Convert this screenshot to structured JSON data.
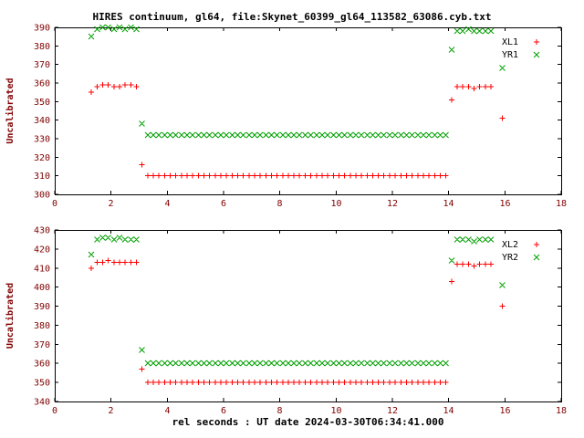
{
  "title": "HIRES continuum, gl64, file:Skynet_60399_gl64_113582_63086.cyb.txt",
  "xlabel": "rel seconds : UT date 2024-03-30T06:34:41.000",
  "colors": {
    "background": "#ffffff",
    "border": "#000000",
    "text": "#000000",
    "axis_text": "#800000",
    "marker_red": "#ff0000",
    "marker_green": "#00a000"
  },
  "chart_data": [
    {
      "type": "scatter",
      "ylabel": "Uncalibrated",
      "xlim": [
        0,
        18
      ],
      "ylim": [
        300,
        390
      ],
      "xtick_step": 2,
      "ytick_step": 10,
      "grid": false,
      "legend_position": "top-right",
      "series": [
        {
          "name": "XL1",
          "marker": "plus",
          "color": "#ff0000",
          "points": [
            [
              1.3,
              355
            ],
            [
              1.5,
              358
            ],
            [
              1.7,
              359
            ],
            [
              1.9,
              359
            ],
            [
              2.1,
              358
            ],
            [
              2.3,
              358
            ],
            [
              2.5,
              359
            ],
            [
              2.7,
              359
            ],
            [
              2.9,
              358
            ],
            [
              3.1,
              316
            ],
            [
              14.1,
              351
            ],
            [
              14.3,
              358
            ],
            [
              14.5,
              358
            ],
            [
              14.7,
              358
            ],
            [
              14.9,
              357
            ],
            [
              15.1,
              358
            ],
            [
              15.3,
              358
            ],
            [
              15.5,
              358
            ],
            [
              15.9,
              341
            ]
          ],
          "runs": [
            [
              3.3,
              13.9,
              0.2,
              310
            ]
          ]
        },
        {
          "name": "YR1",
          "marker": "cross",
          "color": "#00a000",
          "points": [
            [
              1.3,
              385
            ],
            [
              1.5,
              389
            ],
            [
              1.7,
              390
            ],
            [
              1.9,
              390
            ],
            [
              2.1,
              389
            ],
            [
              2.3,
              390
            ],
            [
              2.5,
              389
            ],
            [
              2.7,
              390
            ],
            [
              2.9,
              389
            ],
            [
              3.1,
              338
            ],
            [
              14.1,
              378
            ],
            [
              14.3,
              388
            ],
            [
              14.5,
              388
            ],
            [
              14.7,
              389
            ],
            [
              14.9,
              388
            ],
            [
              15.1,
              388
            ],
            [
              15.3,
              388
            ],
            [
              15.5,
              388
            ],
            [
              15.9,
              368
            ]
          ],
          "runs": [
            [
              3.3,
              13.9,
              0.2,
              332
            ]
          ]
        }
      ]
    },
    {
      "type": "scatter",
      "ylabel": "Uncalibrated",
      "xlim": [
        0,
        18
      ],
      "ylim": [
        340,
        430
      ],
      "xtick_step": 2,
      "ytick_step": 10,
      "grid": false,
      "legend_position": "top-right",
      "series": [
        {
          "name": "XL2",
          "marker": "plus",
          "color": "#ff0000",
          "points": [
            [
              1.3,
              410
            ],
            [
              1.5,
              413
            ],
            [
              1.7,
              413
            ],
            [
              1.9,
              414
            ],
            [
              2.1,
              413
            ],
            [
              2.3,
              413
            ],
            [
              2.5,
              413
            ],
            [
              2.7,
              413
            ],
            [
              2.9,
              413
            ],
            [
              3.1,
              357
            ],
            [
              14.1,
              403
            ],
            [
              14.3,
              412
            ],
            [
              14.5,
              412
            ],
            [
              14.7,
              412
            ],
            [
              14.9,
              411
            ],
            [
              15.1,
              412
            ],
            [
              15.3,
              412
            ],
            [
              15.5,
              412
            ],
            [
              15.9,
              390
            ]
          ],
          "runs": [
            [
              3.3,
              13.9,
              0.2,
              350
            ]
          ]
        },
        {
          "name": "YR2",
          "marker": "cross",
          "color": "#00a000",
          "points": [
            [
              1.3,
              417
            ],
            [
              1.5,
              425
            ],
            [
              1.7,
              426
            ],
            [
              1.9,
              426
            ],
            [
              2.1,
              425
            ],
            [
              2.3,
              426
            ],
            [
              2.5,
              425
            ],
            [
              2.7,
              425
            ],
            [
              2.9,
              425
            ],
            [
              3.1,
              367
            ],
            [
              14.1,
              414
            ],
            [
              14.3,
              425
            ],
            [
              14.5,
              425
            ],
            [
              14.7,
              425
            ],
            [
              14.9,
              424
            ],
            [
              15.1,
              425
            ],
            [
              15.3,
              425
            ],
            [
              15.5,
              425
            ],
            [
              15.9,
              401
            ]
          ],
          "runs": [
            [
              3.3,
              13.9,
              0.2,
              360
            ]
          ]
        }
      ]
    }
  ]
}
